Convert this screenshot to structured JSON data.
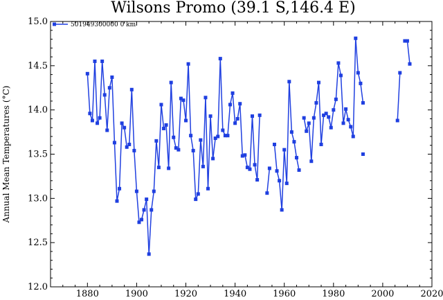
{
  "chart_data": {
    "type": "line",
    "title": "Wilsons Promo (39.1 S,146.4 E)",
    "xlabel": "",
    "ylabel": "Annual Mean Temperatures (°C)",
    "xlim": [
      1865,
      2020
    ],
    "ylim": [
      12.0,
      15.0
    ],
    "x_ticks": [
      1880,
      1900,
      1920,
      1940,
      1960,
      1980,
      2000,
      2020
    ],
    "y_ticks": [
      "12.0",
      "12.5",
      "13.0",
      "13.5",
      "14.0",
      "14.5",
      "15.0"
    ],
    "grid": false,
    "legend_position": "top-left",
    "series": [
      {
        "name": "501949300000 0 km",
        "color": "#1f3fe0",
        "segments": [
          {
            "x": [
              1880,
              1881,
              1882,
              1883,
              1884,
              1885,
              1886,
              1887,
              1888,
              1889,
              1890,
              1891,
              1892,
              1893,
              1894,
              1895,
              1896,
              1897,
              1898,
              1899,
              1900,
              1901,
              1902,
              1903,
              1904,
              1905,
              1906,
              1907,
              1908,
              1909,
              1910,
              1911,
              1912,
              1913,
              1914,
              1915,
              1916,
              1917,
              1918,
              1919,
              1920,
              1921,
              1922,
              1923,
              1924,
              1925,
              1926,
              1927,
              1928,
              1929,
              1930,
              1931,
              1932,
              1933,
              1934,
              1935,
              1936,
              1937,
              1938,
              1939,
              1940,
              1941,
              1942,
              1943,
              1944,
              1945,
              1946,
              1947,
              1948,
              1949,
              1950
            ],
            "y": [
              14.41,
              13.96,
              13.88,
              14.55,
              13.85,
              13.91,
              14.55,
              14.17,
              13.77,
              14.25,
              14.37,
              13.63,
              12.97,
              13.11,
              13.85,
              13.8,
              13.58,
              13.61,
              14.23,
              13.54,
              13.08,
              12.73,
              12.76,
              12.87,
              12.99,
              12.37,
              12.87,
              13.08,
              13.65,
              13.35,
              14.06,
              13.79,
              13.83,
              13.34,
              14.31,
              13.69,
              13.57,
              13.55,
              14.13,
              14.11,
              13.88,
              14.52,
              13.71,
              13.54,
              12.99,
              13.05,
              13.66,
              13.36,
              14.14,
              13.11,
              13.93,
              13.45,
              13.68,
              13.7,
              14.58,
              13.77,
              13.71,
              13.71,
              14.06,
              14.19,
              13.85,
              13.9,
              14.07,
              13.48,
              13.49,
              13.35,
              13.33,
              13.93,
              13.38,
              13.21,
              13.94
            ]
          },
          {
            "x": [
              1953,
              1954,
              1955,
              1956,
              1957,
              1958,
              1959,
              1960,
              1961,
              1962,
              1963,
              1964,
              1965,
              1966,
              1967,
              1968,
              1969,
              1970,
              1971,
              1972,
              1973,
              1974,
              1975,
              1976,
              1977,
              1978,
              1979,
              1980,
              1981,
              1982,
              1983,
              1984,
              1985,
              1986,
              1987,
              1988,
              1989,
              1990,
              1991,
              1992
            ],
            "y": [
              13.06,
              13.34,
              null,
              13.61,
              13.31,
              13.2,
              12.87,
              13.55,
              13.17,
              14.32,
              13.75,
              13.64,
              13.46,
              13.32,
              null,
              13.91,
              13.76,
              13.85,
              13.42,
              13.91,
              14.08,
              14.31,
              13.61,
              13.94,
              13.96,
              13.92,
              13.8,
              14.0,
              14.12,
              14.53,
              14.39,
              13.85,
              14.01,
              13.89,
              13.81,
              13.7,
              14.81,
              14.42,
              14.3,
              14.08
            ]
          },
          {
            "x": [
              1992
            ],
            "y": [
              13.5
            ]
          },
          {
            "x": [
              2006,
              2007,
              2008,
              2009,
              2010,
              2011
            ],
            "y": [
              13.88,
              14.42,
              null,
              14.78,
              14.78,
              14.52
            ]
          }
        ]
      }
    ]
  }
}
